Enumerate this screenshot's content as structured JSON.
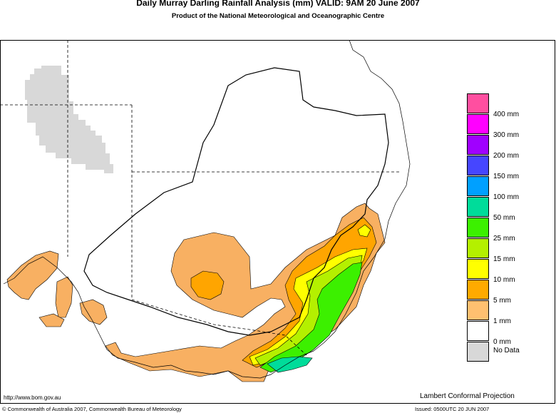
{
  "title": "Daily Murray Darling Rainfall Analysis (mm)  VALID: 9AM 20 June 2007",
  "subtitle": "Product of the National Meteorological and Oceanographic Centre",
  "legend": [
    {
      "label": "400 mm",
      "color": "#ff4fa0"
    },
    {
      "label": "300 mm",
      "color": "#ff00ff"
    },
    {
      "label": "200 mm",
      "color": "#a000ff"
    },
    {
      "label": "150 mm",
      "color": "#4646ff"
    },
    {
      "label": "100 mm",
      "color": "#00a0ff"
    },
    {
      "label": "50 mm",
      "color": "#00dc9a"
    },
    {
      "label": "25 mm",
      "color": "#3cf000"
    },
    {
      "label": "15 mm",
      "color": "#b4f000"
    },
    {
      "label": "10 mm",
      "color": "#ffff00"
    },
    {
      "label": "5 mm",
      "color": "#ffaa00"
    },
    {
      "label": "1 mm",
      "color": "#ffc070"
    },
    {
      "label": "0 mm",
      "color": "#ffffff"
    },
    {
      "label": "No Data",
      "color": "#d8d8d8"
    }
  ],
  "footer": {
    "url": "http://www.bom.gov.au",
    "projection": "Lambert Conformal Projection",
    "copyright": "© Commonwealth of Australia 2007, Commonwealth Bureau of Meteorology",
    "issued": "Issued: 0500UTC 20 JUN 2007"
  }
}
